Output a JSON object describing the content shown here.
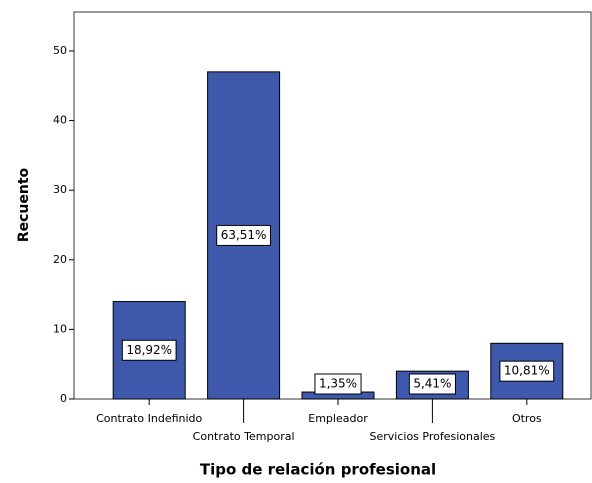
{
  "chart_data": {
    "type": "bar",
    "x_label": "Tipo de relación profesional",
    "y_label": "Recuento",
    "categories": [
      "Contrato Indefinido",
      "Contrato Temporal",
      "Empleador",
      "Servicios Profesionales",
      "Otros"
    ],
    "values": [
      14,
      47,
      1,
      4,
      8
    ],
    "value_labels": [
      "18,92%",
      "63,51%",
      "1,35%",
      "5,41%",
      "10,81%"
    ],
    "color": "#3e58ac",
    "ylim": [
      0,
      55.6
    ],
    "yticks": [
      0,
      10,
      20,
      30,
      40,
      50
    ],
    "grid": false
  }
}
